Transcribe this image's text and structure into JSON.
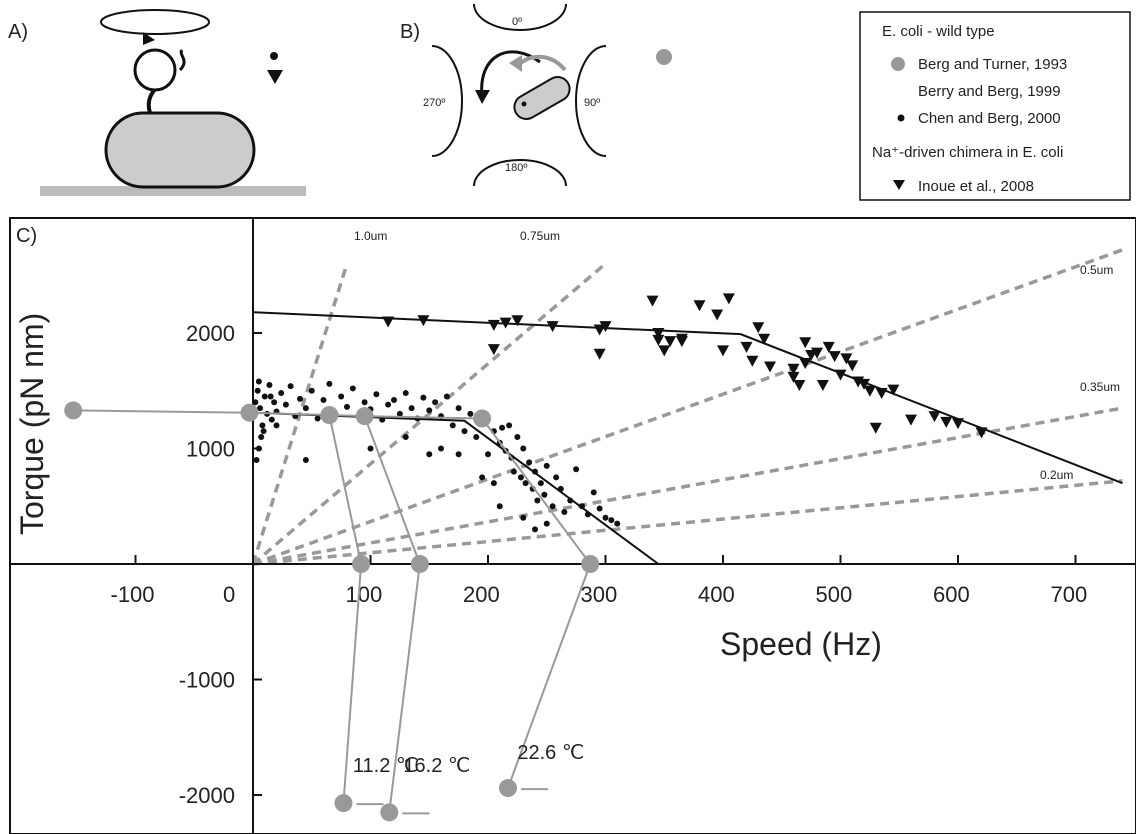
{
  "panels": {
    "a": {
      "label": "A)"
    },
    "b": {
      "label": "B)",
      "angles": [
        "0º",
        "90º",
        "180º",
        "270º"
      ]
    },
    "c": {
      "label": "C)"
    }
  },
  "legend": {
    "wild_type_header": "E. coli - wild type",
    "entries": [
      {
        "marker": "gray-circle",
        "text": "Berg and Turner, 1993"
      },
      {
        "marker": "none",
        "text": "Berry and Berg, 1999"
      },
      {
        "marker": "small-dot",
        "text": "Chen and Berg, 2000"
      }
    ],
    "chimera_header": "Na⁺-driven chimera in E. coli",
    "chimera_entries": [
      {
        "marker": "triangle-down",
        "text": "Inoue et al., 2008"
      }
    ]
  },
  "colors": {
    "gray_marker": "#999999",
    "dashed_line": "#999999",
    "text": "#222222",
    "fit_line": "#111111",
    "ground": "#bbbbbb",
    "cell_fill": "#cccccc"
  },
  "chart_data": {
    "type": "scatter",
    "xlabel": "Speed (Hz)",
    "ylabel": "Torque (pN nm)",
    "xlim": [
      -180,
      740
    ],
    "ylim": [
      -2300,
      2600
    ],
    "xticks": [
      -100,
      0,
      100,
      200,
      300,
      400,
      500,
      600,
      700
    ],
    "yticks": [
      -2000,
      -1000,
      1000,
      2000
    ],
    "grid": false,
    "legend_position": "top-right",
    "fit_lines": [
      {
        "series": "Chen and Berg, 2000",
        "points": [
          [
            0,
            1310
          ],
          [
            180,
            1240
          ],
          [
            345,
            0
          ]
        ]
      },
      {
        "series": "Inoue et al., 2008",
        "points": [
          [
            0,
            2180
          ],
          [
            415,
            1990
          ],
          [
            740,
            700
          ]
        ]
      }
    ],
    "bead_load_lines": [
      {
        "label": "1.0um",
        "end": [
          80,
          2600
        ]
      },
      {
        "label": "0.75um",
        "end": [
          300,
          2600
        ]
      },
      {
        "label": "0.5um",
        "end": [
          740,
          2720
        ]
      },
      {
        "label": "0.35um",
        "end": [
          740,
          1350
        ]
      },
      {
        "label": "0.2um",
        "end": [
          740,
          720
        ]
      }
    ],
    "series": [
      {
        "name": "Berg and Turner, 1993",
        "marker": "gray-circle",
        "points": [
          [
            -153,
            1330
          ],
          [
            -3,
            1310
          ],
          [
            65,
            1290
          ],
          [
            95,
            1280
          ],
          [
            195,
            1260
          ],
          [
            92,
            0
          ],
          [
            142,
            0
          ],
          [
            287,
            0
          ],
          [
            77,
            -2070
          ],
          [
            116,
            -2150
          ],
          [
            217,
            -1940
          ]
        ]
      },
      {
        "name": "Chen and Berg, 2000",
        "marker": "small-dot",
        "points": [
          [
            2,
            1400
          ],
          [
            4,
            1500
          ],
          [
            6,
            1350
          ],
          [
            8,
            1200
          ],
          [
            10,
            1450
          ],
          [
            12,
            1300
          ],
          [
            14,
            1550
          ],
          [
            16,
            1250
          ],
          [
            18,
            1400
          ],
          [
            20,
            1320
          ],
          [
            24,
            1480
          ],
          [
            28,
            1380
          ],
          [
            32,
            1540
          ],
          [
            36,
            1280
          ],
          [
            40,
            1430
          ],
          [
            45,
            1350
          ],
          [
            50,
            1500
          ],
          [
            55,
            1260
          ],
          [
            60,
            1420
          ],
          [
            65,
            1560
          ],
          [
            70,
            1300
          ],
          [
            75,
            1450
          ],
          [
            80,
            1360
          ],
          [
            85,
            1520
          ],
          [
            90,
            1280
          ],
          [
            95,
            1400
          ],
          [
            100,
            1340
          ],
          [
            105,
            1470
          ],
          [
            110,
            1250
          ],
          [
            115,
            1380
          ],
          [
            120,
            1420
          ],
          [
            125,
            1300
          ],
          [
            130,
            1480
          ],
          [
            135,
            1350
          ],
          [
            140,
            1260
          ],
          [
            145,
            1440
          ],
          [
            150,
            1330
          ],
          [
            155,
            1400
          ],
          [
            160,
            1280
          ],
          [
            165,
            1450
          ],
          [
            170,
            1200
          ],
          [
            175,
            1350
          ],
          [
            180,
            1150
          ],
          [
            185,
            1300
          ],
          [
            190,
            1100
          ],
          [
            195,
            1250
          ],
          [
            200,
            950
          ],
          [
            205,
            1150
          ],
          [
            210,
            1050
          ],
          [
            212,
            1180
          ],
          [
            215,
            980
          ],
          [
            218,
            1200
          ],
          [
            220,
            920
          ],
          [
            222,
            800
          ],
          [
            225,
            1100
          ],
          [
            228,
            750
          ],
          [
            230,
            1000
          ],
          [
            232,
            700
          ],
          [
            235,
            880
          ],
          [
            238,
            650
          ],
          [
            240,
            800
          ],
          [
            242,
            550
          ],
          [
            245,
            700
          ],
          [
            248,
            600
          ],
          [
            250,
            850
          ],
          [
            255,
            500
          ],
          [
            258,
            750
          ],
          [
            262,
            650
          ],
          [
            265,
            450
          ],
          [
            270,
            550
          ],
          [
            275,
            820
          ],
          [
            280,
            500
          ],
          [
            285,
            430
          ],
          [
            290,
            620
          ],
          [
            295,
            480
          ],
          [
            300,
            400
          ],
          [
            305,
            380
          ],
          [
            310,
            350
          ],
          [
            3,
            900
          ],
          [
            5,
            1000
          ],
          [
            7,
            1100
          ],
          [
            9,
            1150
          ],
          [
            5,
            1580
          ],
          [
            15,
            1450
          ],
          [
            20,
            1200
          ],
          [
            195,
            750
          ],
          [
            205,
            700
          ],
          [
            210,
            500
          ],
          [
            230,
            400
          ],
          [
            240,
            300
          ],
          [
            250,
            350
          ],
          [
            45,
            900
          ],
          [
            100,
            1000
          ],
          [
            130,
            1100
          ],
          [
            150,
            950
          ],
          [
            160,
            1000
          ],
          [
            175,
            950
          ]
        ]
      },
      {
        "name": "Inoue et al., 2008",
        "marker": "triangle-down",
        "points": [
          [
            115,
            2100
          ],
          [
            145,
            2110
          ],
          [
            205,
            2070
          ],
          [
            205,
            1860
          ],
          [
            215,
            2090
          ],
          [
            225,
            2110
          ],
          [
            255,
            2060
          ],
          [
            295,
            2030
          ],
          [
            295,
            1820
          ],
          [
            350,
            1850
          ],
          [
            345,
            2000
          ],
          [
            365,
            1930
          ],
          [
            380,
            2240
          ],
          [
            395,
            2160
          ],
          [
            400,
            1850
          ],
          [
            345,
            1940
          ],
          [
            355,
            1930
          ],
          [
            365,
            1950
          ],
          [
            300,
            2060
          ],
          [
            340,
            2280
          ],
          [
            405,
            2300
          ],
          [
            420,
            1880
          ],
          [
            425,
            1760
          ],
          [
            430,
            2050
          ],
          [
            435,
            1950
          ],
          [
            440,
            1710
          ],
          [
            460,
            1620
          ],
          [
            465,
            1550
          ],
          [
            470,
            1740
          ],
          [
            475,
            1810
          ],
          [
            480,
            1830
          ],
          [
            485,
            1550
          ],
          [
            490,
            1880
          ],
          [
            495,
            1800
          ],
          [
            500,
            1640
          ],
          [
            505,
            1780
          ],
          [
            510,
            1720
          ],
          [
            515,
            1580
          ],
          [
            520,
            1560
          ],
          [
            525,
            1500
          ],
          [
            530,
            1180
          ],
          [
            535,
            1480
          ],
          [
            545,
            1510
          ],
          [
            560,
            1250
          ],
          [
            580,
            1280
          ],
          [
            590,
            1230
          ],
          [
            600,
            1220
          ],
          [
            620,
            1140
          ],
          [
            460,
            1690
          ],
          [
            470,
            1920
          ]
        ]
      }
    ],
    "annotations": [
      {
        "text": "11.2 ℃",
        "x": 85,
        "y": -1800
      },
      {
        "text": "16.2 ℃",
        "x": 128,
        "y": -1800
      },
      {
        "text": "22.6 ℃",
        "x": 225,
        "y": -1690
      }
    ]
  }
}
